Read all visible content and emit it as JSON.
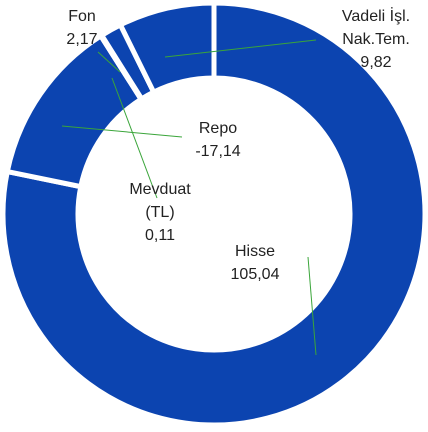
{
  "chart_data": {
    "type": "donut",
    "categories": [
      "Hisse",
      "Repo",
      "Mevduat (TL)",
      "Fon",
      "Vadeli İşl. Nak.Tem."
    ],
    "values": [
      105.04,
      -17.14,
      0.11,
      2.17,
      9.82
    ],
    "value_labels": [
      "105,04",
      "-17,14",
      "0,11",
      "2,17",
      "9,82"
    ],
    "color": "#0c44b0",
    "leader_color": "#3aa53a"
  }
}
